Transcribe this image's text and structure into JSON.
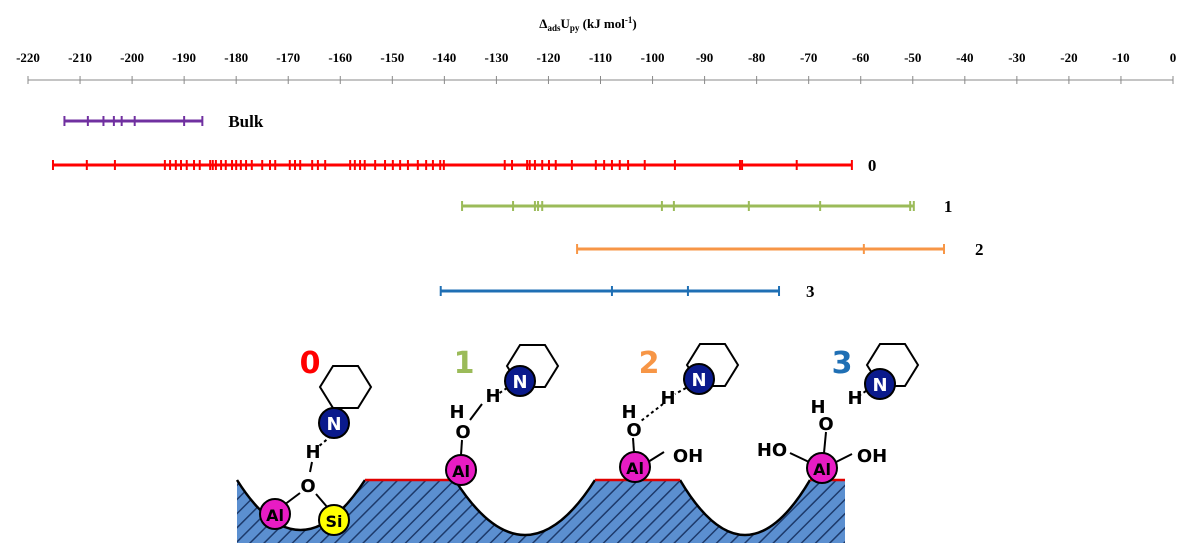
{
  "chart_data": {
    "type": "strip",
    "x_label": [
      "Δ",
      "ads",
      "U",
      "py",
      " (kJ mol",
      "-1",
      ")"
    ],
    "xlim": [
      -220,
      0
    ],
    "xticks": [
      -220,
      -210,
      -200,
      -190,
      -180,
      -170,
      -160,
      -150,
      -140,
      -130,
      -120,
      -110,
      -100,
      -90,
      -80,
      -70,
      -60,
      -50,
      -40,
      -30,
      -20,
      -10,
      0
    ],
    "series": [
      {
        "name": "Bulk",
        "color": "#7030a0",
        "values": [
          -213,
          -208.5,
          -205.5,
          -203.5,
          -202,
          -199.5,
          -190,
          -186.5
        ]
      },
      {
        "name": "0",
        "color": "#ff0000",
        "values": [
          -215.2,
          -208.7,
          -203.3,
          -193.7,
          -192.7,
          -191.6,
          -190.6,
          -189.5,
          -188.1,
          -187.0,
          -185.0,
          -184.5,
          -183.9,
          -182.9,
          -182.0,
          -180.8,
          -180.0,
          -179.1,
          -178.1,
          -177.0,
          -175.0,
          -173.5,
          -172.5,
          -169.7,
          -168.7,
          -167.7,
          -165.4,
          -164.3,
          -162.9,
          -158.1,
          -157.2,
          -156.2,
          -155.3,
          -153.3,
          -151.4,
          -149.9,
          -148.5,
          -147.0,
          -145.1,
          -143.5,
          -142.2,
          -140.8,
          -140.1,
          -128.4,
          -127.0,
          -124.1,
          -123.6,
          -122.6,
          -121.2,
          -119.9,
          -118.6,
          -115.5,
          -110.9,
          -109.3,
          -107.8,
          -106.3,
          -104.7,
          -101.5,
          -95.7,
          -83.2,
          -82.8,
          -72.3,
          -61.7
        ]
      },
      {
        "name": "1",
        "color": "#9bbb59",
        "values": [
          -136.6,
          -126.8,
          -122.6,
          -122.0,
          -121.2,
          -98.2,
          -95.9,
          -81.5,
          -67.8,
          -50.5,
          -49.8
        ]
      },
      {
        "name": "2",
        "color": "#f79646",
        "values": [
          -114.5,
          -59.4,
          -44.0
        ]
      },
      {
        "name": "3",
        "color": "#1f6fb4",
        "values": [
          -140.7,
          -107.8,
          -93.2,
          -75.7
        ]
      }
    ]
  },
  "diagram": {
    "panels": [
      {
        "label": "0",
        "atoms": [
          "N",
          "H",
          "O",
          "Al",
          "Si"
        ]
      },
      {
        "label": "1",
        "atoms": [
          "N",
          "H",
          "H",
          "O",
          "Al"
        ]
      },
      {
        "label": "2",
        "atoms": [
          "N",
          "H",
          "H",
          "O",
          "Al",
          "OH"
        ]
      },
      {
        "label": "3",
        "atoms": [
          "N",
          "H",
          "H",
          "O",
          "Al",
          "HO",
          "OH"
        ]
      }
    ]
  }
}
